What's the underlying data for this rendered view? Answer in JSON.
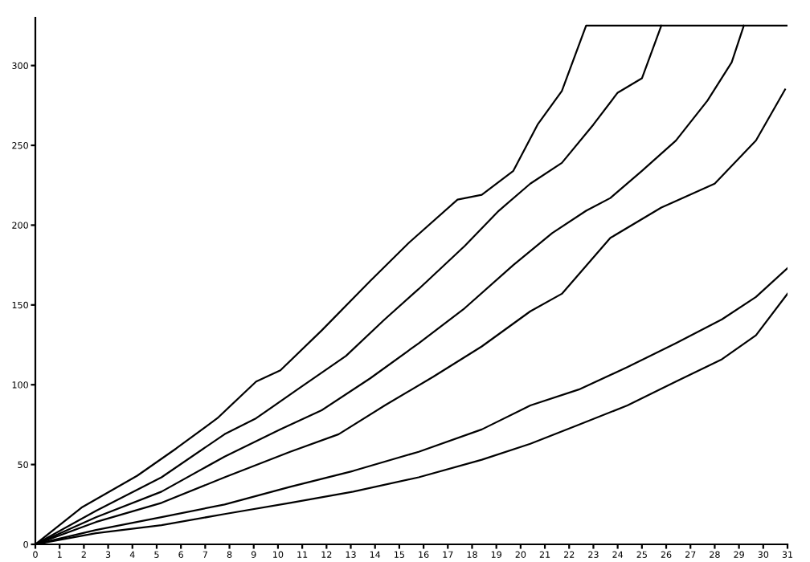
{
  "chart_data": {
    "type": "line",
    "xlim": [
      0,
      31
    ],
    "ylim": [
      0,
      330
    ],
    "xticks": [
      0,
      1,
      2,
      3,
      4,
      5,
      6,
      7,
      8,
      9,
      10,
      11,
      12,
      13,
      14,
      15,
      16,
      17,
      18,
      19,
      20,
      21,
      22,
      23,
      24,
      25,
      26,
      27,
      28,
      29,
      30,
      31
    ],
    "yticks": [
      0,
      50,
      100,
      150,
      200,
      250,
      300
    ],
    "grid": false,
    "legend": false,
    "marker": "none",
    "line_style": "solid",
    "series": [
      {
        "color": "#000000",
        "x": [
          0,
          1.9,
          4.2,
          5.8,
          7.5,
          9.1,
          10.1,
          11.8,
          13.8,
          15.4,
          17.4,
          18.4,
          19.7,
          20.7,
          21.7,
          22.7,
          31
        ],
        "values": [
          0,
          23,
          43,
          60,
          79,
          102,
          109,
          134,
          165,
          189,
          216,
          219,
          234,
          263,
          284,
          325,
          325
        ]
      },
      {
        "color": "#000000",
        "x": [
          0,
          2.5,
          5.2,
          7.8,
          9.1,
          10.8,
          12.8,
          14.4,
          15.8,
          17.7,
          19.1,
          20.4,
          21.7,
          23.0,
          24.0,
          25.0,
          25.8
        ],
        "values": [
          0,
          21,
          42,
          69,
          79,
          97,
          118,
          141,
          160,
          187,
          209,
          226,
          239,
          263,
          283,
          292,
          325
        ]
      },
      {
        "color": "#000000",
        "x": [
          0,
          2.5,
          5.2,
          7.8,
          10.1,
          11.8,
          13.8,
          15.8,
          17.7,
          19.7,
          21.3,
          22.7,
          23.7,
          25.0,
          26.4,
          27.7,
          28.7,
          29.2
        ],
        "values": [
          0,
          17,
          33,
          55,
          72,
          84,
          104,
          126,
          148,
          175,
          195,
          209,
          217,
          234,
          253,
          278,
          302,
          325
        ]
      },
      {
        "color": "#000000",
        "x": [
          0,
          2.5,
          5.2,
          7.8,
          10.5,
          12.5,
          14.4,
          16.4,
          18.4,
          20.4,
          21.7,
          23.7,
          25.8,
          28.0,
          29.7,
          30.9
        ],
        "values": [
          0,
          14,
          26,
          42,
          58,
          69,
          87,
          105,
          124,
          146,
          157,
          192,
          211,
          226,
          253,
          285
        ]
      },
      {
        "color": "#000000",
        "x": [
          0,
          2.5,
          5.2,
          7.8,
          10.5,
          13.1,
          15.8,
          18.4,
          20.4,
          22.4,
          24.4,
          26.4,
          28.3,
          29.7,
          31.0
        ],
        "values": [
          0,
          9,
          17,
          25,
          36,
          46,
          58,
          72,
          87,
          97,
          111,
          126,
          141,
          155,
          173
        ]
      },
      {
        "color": "#000000",
        "x": [
          0,
          2.5,
          5.2,
          7.8,
          10.5,
          13.1,
          15.8,
          18.4,
          20.4,
          22.4,
          24.4,
          26.4,
          28.3,
          29.7,
          31.0
        ],
        "values": [
          0,
          7,
          12,
          19,
          26,
          33,
          42,
          53,
          63,
          75,
          87,
          102,
          116,
          131,
          157
        ]
      }
    ]
  }
}
